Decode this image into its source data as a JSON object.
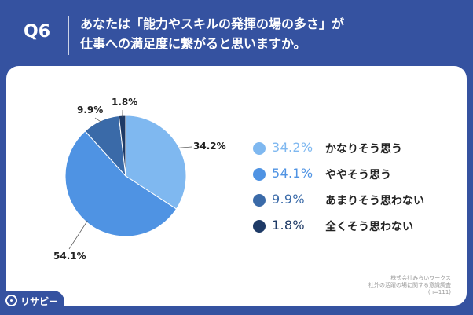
{
  "header": {
    "question_label": "Q6",
    "title_line1": "あなたは「能力やスキルの発揮の場の多さ」が",
    "title_line2": "仕事への満足度に繋がると思いますか。"
  },
  "chart_data": {
    "type": "pie",
    "title": "",
    "slices": [
      {
        "label": "かなりそう思う",
        "value": 34.2,
        "display": "34.2%",
        "color": "#7fb8f0"
      },
      {
        "label": "ややそう思う",
        "value": 54.1,
        "display": "54.1%",
        "color": "#4f93e3"
      },
      {
        "label": "あまりそう思わない",
        "value": 9.9,
        "display": "9.9%",
        "color": "#3a6aa8"
      },
      {
        "label": "全くそう思わない",
        "value": 1.8,
        "display": "1.8%",
        "color": "#1e3a66"
      }
    ],
    "start": "12 o'clock",
    "direction": "clockwise",
    "legend_position": "right"
  },
  "source": {
    "line1": "株式会社みらいワークス",
    "line2": "社外の活躍の場に関する意識調査",
    "line3": "(n=111)"
  },
  "logo": {
    "text": "リサピー",
    "icon": "risapy-logo-icon"
  }
}
